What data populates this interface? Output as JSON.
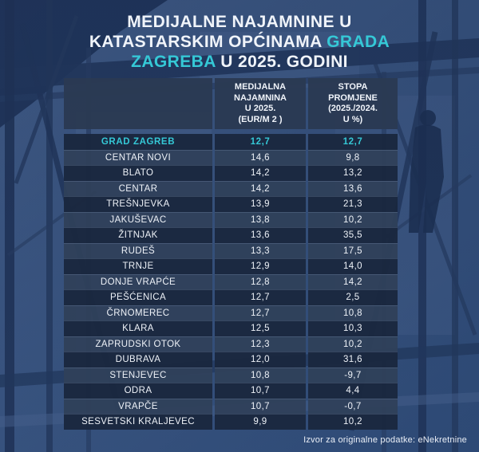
{
  "colors": {
    "accent": "#35c8d6",
    "row_dark": "#1a283e",
    "row_light": "#2f405a",
    "header_bg": "#2a3a53",
    "background_blue": "#3b5681"
  },
  "title": {
    "full_text": "MEDIJALNE NAJAMNINE U KATASTARSKIM OPĆINAMA GRADA ZAGREBA U 2025. GODINI",
    "lines": [
      [
        {
          "text": "MEDIJALNE NAJAMNINE U",
          "accent": false
        }
      ],
      [
        {
          "text": "KATASTARSKIM OPĆINAMA ",
          "accent": false
        },
        {
          "text": "GRADA",
          "accent": true
        }
      ],
      [
        {
          "text": "ZAGREBA",
          "accent": true
        },
        {
          "text": " U 2025. GODINI",
          "accent": false
        }
      ]
    ]
  },
  "table": {
    "columns": [
      "",
      "MEDIJALNA\nNAJAMNINA\nU 2025.\n(EUR/M 2 )",
      "STOPA\nPROMJENE\n(2025./2024.\nU %)"
    ],
    "rows": [
      {
        "name": "GRAD ZAGREB",
        "rent": "12,7",
        "change": "12,7",
        "highlight": true
      },
      {
        "name": "CENTAR NOVI",
        "rent": "14,6",
        "change": "9,8",
        "highlight": false
      },
      {
        "name": "BLATO",
        "rent": "14,2",
        "change": "13,2",
        "highlight": false
      },
      {
        "name": "CENTAR",
        "rent": "14,2",
        "change": "13,6",
        "highlight": false
      },
      {
        "name": "TREŠNJEVKA",
        "rent": "13,9",
        "change": "21,3",
        "highlight": false
      },
      {
        "name": "JAKUŠEVAC",
        "rent": "13,8",
        "change": "10,2",
        "highlight": false
      },
      {
        "name": "ŽITNJAK",
        "rent": "13,6",
        "change": "35,5",
        "highlight": false
      },
      {
        "name": "RUDEŠ",
        "rent": "13,3",
        "change": "17,5",
        "highlight": false
      },
      {
        "name": "TRNJE",
        "rent": "12,9",
        "change": "14,0",
        "highlight": false
      },
      {
        "name": "DONJE VRAPĆE",
        "rent": "12,8",
        "change": "14,2",
        "highlight": false
      },
      {
        "name": "PEŠĆENICA",
        "rent": "12,7",
        "change": "2,5",
        "highlight": false
      },
      {
        "name": "ČRNOMEREC",
        "rent": "12,7",
        "change": "10,8",
        "highlight": false
      },
      {
        "name": "KLARA",
        "rent": "12,5",
        "change": "10,3",
        "highlight": false
      },
      {
        "name": "ZAPRUDSKI OTOK",
        "rent": "12,3",
        "change": "10,2",
        "highlight": false
      },
      {
        "name": "DUBRAVA",
        "rent": "12,0",
        "change": "31,6",
        "highlight": false
      },
      {
        "name": "STENJEVEC",
        "rent": "10,8",
        "change": "-9,7",
        "highlight": false
      },
      {
        "name": "ODRA",
        "rent": "10,7",
        "change": "4,4",
        "highlight": false
      },
      {
        "name": "VRAPČE",
        "rent": "10,7",
        "change": "-0,7",
        "highlight": false
      },
      {
        "name": "SESVETSKI KRALJEVEC",
        "rent": "9,9",
        "change": "10,2",
        "highlight": false
      }
    ]
  },
  "chart_data": {
    "type": "table",
    "title": "MEDIJALNE NAJAMNINE U KATASTARSKIM OPĆINAMA GRADA ZAGREBA U 2025. GODINI",
    "columns": [
      "",
      "MEDIJALNA NAJAMNINA U 2025. (EUR/M 2 )",
      "STOPA PROMJENE (2025./2024. U %)"
    ],
    "rows": [
      [
        "GRAD ZAGREB",
        12.7,
        12.7
      ],
      [
        "CENTAR NOVI",
        14.6,
        9.8
      ],
      [
        "BLATO",
        14.2,
        13.2
      ],
      [
        "CENTAR",
        14.2,
        13.6
      ],
      [
        "TREŠNJEVKA",
        13.9,
        21.3
      ],
      [
        "JAKUŠEVAC",
        13.8,
        10.2
      ],
      [
        "ŽITNJAK",
        13.6,
        35.5
      ],
      [
        "RUDEŠ",
        13.3,
        17.5
      ],
      [
        "TRNJE",
        12.9,
        14.0
      ],
      [
        "DONJE VRAPĆE",
        12.8,
        14.2
      ],
      [
        "PEŠĆENICA",
        12.7,
        2.5
      ],
      [
        "ČRNOMEREC",
        12.7,
        10.8
      ],
      [
        "KLARA",
        12.5,
        10.3
      ],
      [
        "ZAPRUDSKI OTOK",
        12.3,
        10.2
      ],
      [
        "DUBRAVA",
        12.0,
        31.6
      ],
      [
        "STENJEVEC",
        10.8,
        -9.7
      ],
      [
        "ODRA",
        10.7,
        4.4
      ],
      [
        "VRAPČE",
        10.7,
        -0.7
      ],
      [
        "SESVETSKI KRALJEVEC",
        9.9,
        10.2
      ]
    ],
    "highlighted_row": "GRAD ZAGREB"
  },
  "footer": {
    "source_label": "Izvor za originalne podatke: eNekretnine"
  }
}
